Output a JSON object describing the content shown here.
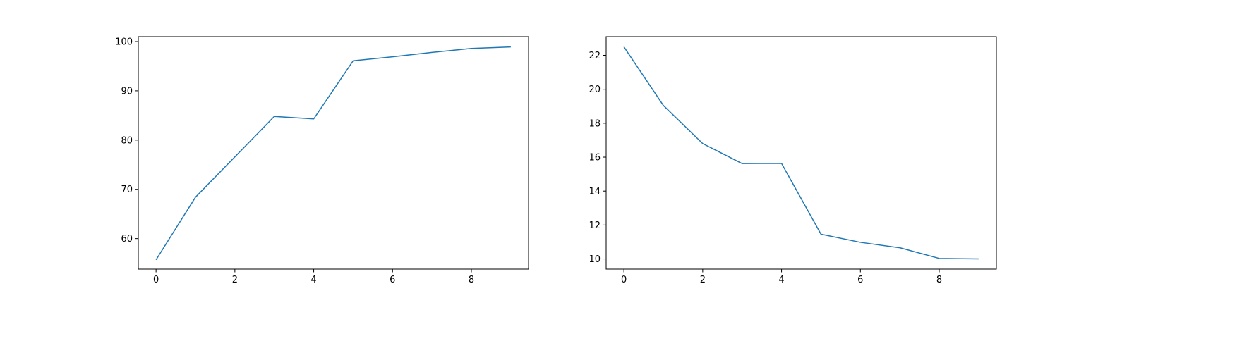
{
  "chart_data": [
    {
      "type": "line",
      "title": "",
      "xlabel": "",
      "ylabel": "",
      "xlim": [
        -0.45,
        9.45
      ],
      "ylim": [
        53.8,
        101.0
      ],
      "xticks": [
        0,
        2,
        4,
        6,
        8
      ],
      "yticks": [
        60,
        70,
        80,
        90,
        100
      ],
      "grid": false,
      "legend": "none",
      "series": [
        {
          "color": "#1f77b4",
          "x": [
            0,
            1,
            2,
            3,
            4,
            5,
            6,
            7,
            8,
            9
          ],
          "y": [
            55.7,
            68.4,
            76.6,
            84.8,
            84.3,
            96.1,
            96.9,
            97.8,
            98.6,
            98.9
          ]
        }
      ]
    },
    {
      "type": "line",
      "title": "",
      "xlabel": "",
      "ylabel": "",
      "xlim": [
        -0.45,
        9.45
      ],
      "ylim": [
        9.4,
        23.1
      ],
      "xticks": [
        0,
        2,
        4,
        6,
        8
      ],
      "yticks": [
        10,
        12,
        14,
        16,
        18,
        20,
        22
      ],
      "grid": false,
      "legend": "none",
      "series": [
        {
          "color": "#1f77b4",
          "x": [
            0,
            1,
            2,
            3,
            4,
            5,
            6,
            7,
            8,
            9
          ],
          "y": [
            22.5,
            19.05,
            16.8,
            15.62,
            15.63,
            11.46,
            10.98,
            10.66,
            10.03,
            10.0
          ]
        }
      ]
    }
  ]
}
